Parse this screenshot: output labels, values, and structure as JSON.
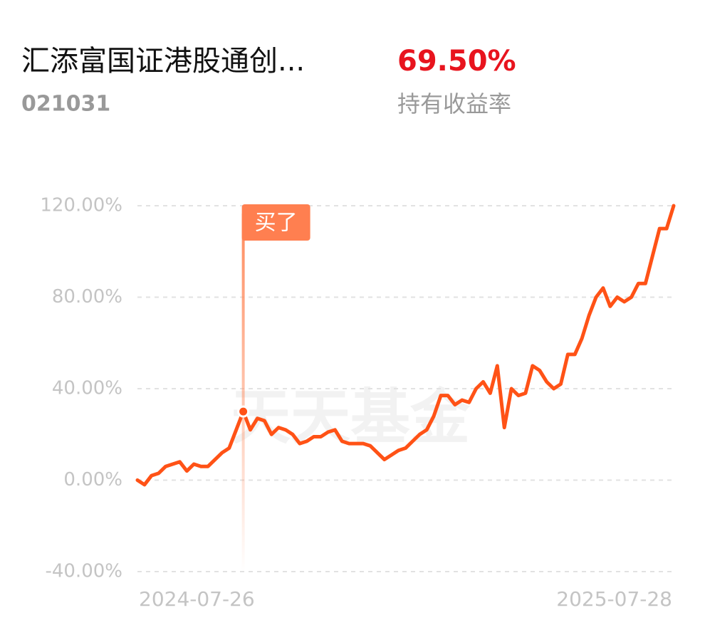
{
  "header": {
    "title": "汇添富国证港股通创...",
    "code": "021031",
    "return_value": "69.50%",
    "return_label": "持有收益率"
  },
  "chart_data": {
    "type": "line",
    "watermark": "天天基金",
    "ylim": [
      -40,
      120
    ],
    "yticks": [
      {
        "value": -40,
        "label": "-40.00%"
      },
      {
        "value": 0,
        "label": "0.00%"
      },
      {
        "value": 40,
        "label": "40.00%"
      },
      {
        "value": 80,
        "label": "80.00%"
      },
      {
        "value": 120,
        "label": "120.00%"
      }
    ],
    "grid": true,
    "categories": [
      "2024-07-26",
      null,
      null,
      null,
      null,
      null,
      null,
      null,
      null,
      null,
      null,
      null,
      null,
      null,
      null,
      null,
      null,
      null,
      null,
      null,
      null,
      null,
      null,
      null,
      null,
      null,
      null,
      null,
      null,
      null,
      null,
      null,
      null,
      null,
      null,
      null,
      null,
      null,
      null,
      null,
      null,
      null,
      null,
      null,
      null,
      null,
      null,
      null,
      null,
      null,
      null,
      null,
      null,
      null,
      null,
      null,
      null,
      null,
      null,
      null,
      null,
      null,
      null,
      null,
      null,
      null,
      null,
      null,
      null,
      null,
      null,
      null,
      null,
      null,
      null,
      null,
      "2025-07-28"
    ],
    "series": [
      {
        "color": "#ff5216",
        "values": [
          0,
          -2,
          2,
          3,
          6,
          7,
          8,
          4,
          7,
          6,
          6,
          9,
          12,
          14,
          22,
          30,
          22,
          27,
          26,
          20,
          23,
          22,
          20,
          16,
          17,
          19,
          19,
          21,
          22,
          17,
          16,
          16,
          16,
          15,
          12,
          9,
          11,
          13,
          14,
          17,
          20,
          22,
          28,
          37,
          37,
          33,
          35,
          34,
          40,
          43,
          38,
          50,
          23,
          40,
          37,
          38,
          50,
          48,
          43,
          40,
          42,
          55,
          55,
          62,
          72,
          80,
          84,
          76,
          80,
          78,
          80,
          86,
          86,
          98,
          110,
          110,
          120
        ]
      }
    ],
    "annotations": [
      {
        "text": "买了",
        "index": 15
      }
    ]
  }
}
